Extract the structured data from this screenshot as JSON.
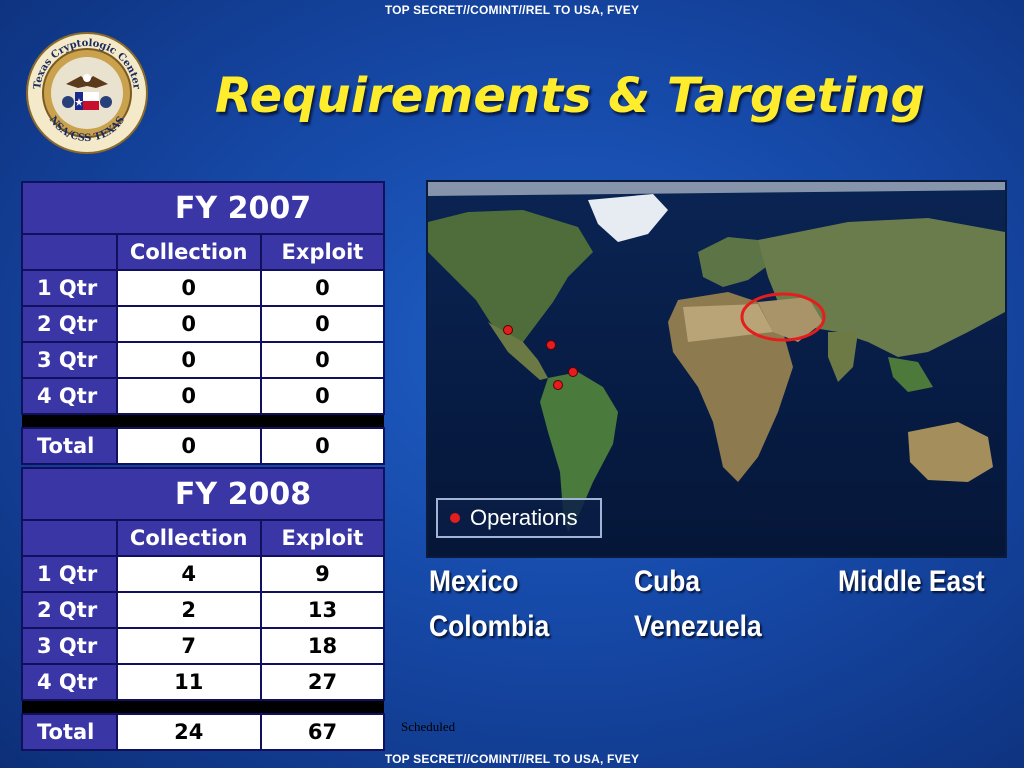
{
  "classification": {
    "top": "TOP SECRET//COMINT//REL TO USA, FVEY",
    "bottom": "TOP SECRET//COMINT//REL TO USA, FVEY"
  },
  "seal": {
    "text_top": "Texas Cryptologic Center",
    "text_bottom": "NSA/CSS TEXAS",
    "icon": "eagle-seal"
  },
  "title": "Requirements & Targeting",
  "fy2007": {
    "heading": "FY 2007",
    "columns": [
      "Collection",
      "Exploit"
    ],
    "rows": [
      {
        "label": "1 Qtr",
        "collection": "0",
        "exploit": "0"
      },
      {
        "label": "2 Qtr",
        "collection": "0",
        "exploit": "0"
      },
      {
        "label": "3 Qtr",
        "collection": "0",
        "exploit": "0"
      },
      {
        "label": "4 Qtr",
        "collection": "0",
        "exploit": "0"
      }
    ],
    "total": {
      "label": "Total",
      "collection": "0",
      "exploit": "0"
    }
  },
  "fy2008": {
    "heading": "FY 2008",
    "columns": [
      "Collection",
      "Exploit"
    ],
    "rows": [
      {
        "label": "1 Qtr",
        "collection": "4",
        "exploit": "9"
      },
      {
        "label": "2 Qtr",
        "collection": "2",
        "exploit": "13"
      },
      {
        "label": "3 Qtr",
        "collection": "7",
        "exploit": "18"
      },
      {
        "label": "4 Qtr",
        "collection": "11",
        "exploit": "27"
      }
    ],
    "total": {
      "label": "Total",
      "collection": "24",
      "exploit": "67"
    }
  },
  "map": {
    "legend_label": "Operations",
    "marker_color": "#e51d1d",
    "highlight_color": "#e51d1d"
  },
  "regions": [
    "Mexico",
    "Cuba",
    "Middle East",
    "Colombia",
    "Venezuela"
  ],
  "scheduled_note": "Scheduled",
  "colors": {
    "title": "#ffec2d",
    "table_header": "#3b36a6",
    "background": "#1649a8"
  }
}
